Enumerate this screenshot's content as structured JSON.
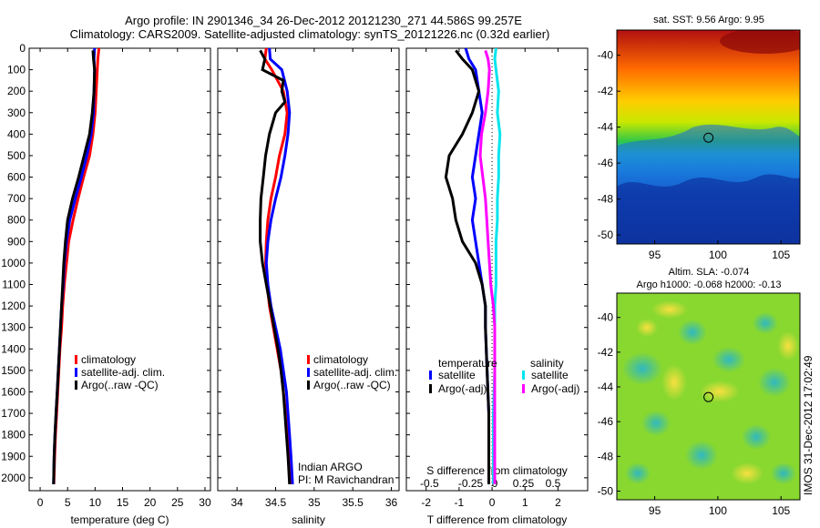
{
  "header": {
    "line1": "Argo profile: IN 2901346_34 26-Dec-2012 20121230_271 44.586S 99.257E",
    "line2": "Climatology: CARS2009. Satellite-adjusted climatology: synTS_20121226.nc (0.32d earlier)"
  },
  "side_text": "IMOS 31-Dec-2012 17:02:49",
  "colors": {
    "red": "#ff0000",
    "blue": "#0000ff",
    "black": "#000000",
    "cyan": "#00e5ee",
    "magenta": "#ff00ff"
  },
  "chart_data": [
    {
      "type": "line",
      "panel": "temperature",
      "xlabel": "temperature (deg C)",
      "ylabel": "",
      "xlim": [
        -2,
        31
      ],
      "ylim": [
        2060,
        0
      ],
      "xticks": [
        0,
        5,
        10,
        15,
        20,
        25,
        30
      ],
      "yticks": [
        0,
        100,
        200,
        300,
        400,
        500,
        600,
        700,
        800,
        900,
        1000,
        1100,
        1200,
        1300,
        1400,
        1500,
        1600,
        1700,
        1800,
        1900,
        2000
      ],
      "legend": {
        "placement": "lower-center",
        "entries": [
          "climatology",
          "satellite-adj. clim.",
          "Argo(..raw -QC)"
        ]
      },
      "series": [
        {
          "name": "climatology",
          "color": "red",
          "depth": [
            0,
            50,
            100,
            200,
            300,
            400,
            500,
            600,
            700,
            800,
            900,
            1000,
            1100,
            1200,
            1300,
            1400,
            1500,
            1600,
            1700,
            1800,
            1900,
            2030
          ],
          "values": [
            10.7,
            10.5,
            10.4,
            10.2,
            10.0,
            9.6,
            9.0,
            7.9,
            6.9,
            6.0,
            5.2,
            4.8,
            4.4,
            4.1,
            3.9,
            3.6,
            3.4,
            3.2,
            3.0,
            2.8,
            2.65,
            2.5
          ]
        },
        {
          "name": "satellite-adj. clim.",
          "color": "blue",
          "depth": [
            0,
            50,
            100,
            200,
            300,
            400,
            500,
            600,
            700,
            800,
            900,
            1000,
            1100,
            1200,
            1300,
            1400,
            1500,
            1600,
            1700,
            1800,
            1900,
            2030
          ],
          "values": [
            9.9,
            9.8,
            9.9,
            9.8,
            9.7,
            9.3,
            8.5,
            7.5,
            6.4,
            5.4,
            4.8,
            4.4,
            4.2,
            3.9,
            3.7,
            3.5,
            3.3,
            3.1,
            2.9,
            2.7,
            2.55,
            2.45
          ]
        },
        {
          "name": "Argo(..raw -QC)",
          "color": "black",
          "depth": [
            10,
            50,
            100,
            200,
            300,
            400,
            500,
            600,
            700,
            800,
            900,
            1000,
            1100,
            1200,
            1300,
            1400,
            1500,
            1600,
            1700,
            1800,
            1900,
            2030
          ],
          "values": [
            9.6,
            9.7,
            9.9,
            9.8,
            9.5,
            9.0,
            8.0,
            7.0,
            5.9,
            5.0,
            4.6,
            4.3,
            4.1,
            3.9,
            3.7,
            3.5,
            3.3,
            3.1,
            2.9,
            2.7,
            2.55,
            2.45
          ]
        }
      ]
    },
    {
      "type": "line",
      "panel": "salinity",
      "xlabel": "salinity",
      "ylabel": "",
      "xlim": [
        33.75,
        36.1
      ],
      "ylim": [
        2060,
        0
      ],
      "xticks": [
        34,
        34.5,
        35,
        35.5,
        36
      ],
      "legend": {
        "placement": "lower-right",
        "entries": [
          "climatology",
          "satellite-adj. clim.",
          "Argo(..raw -QC)"
        ]
      },
      "annotations": [
        "Indian ARGO",
        "PI: M Ravichandran"
      ],
      "series": [
        {
          "name": "climatology",
          "color": "red",
          "depth": [
            0,
            50,
            100,
            200,
            300,
            400,
            500,
            600,
            700,
            800,
            900,
            1000,
            1100,
            1200,
            1300,
            1400,
            1500,
            1600,
            1700,
            1800,
            1900,
            2030
          ],
          "values": [
            34.38,
            34.36,
            34.45,
            34.6,
            34.65,
            34.62,
            34.55,
            34.5,
            34.44,
            34.4,
            34.38,
            34.37,
            34.39,
            34.42,
            34.47,
            34.52,
            34.57,
            34.6,
            34.63,
            34.65,
            34.67,
            34.7
          ]
        },
        {
          "name": "satellite-adj. clim.",
          "color": "blue",
          "depth": [
            0,
            50,
            100,
            200,
            300,
            400,
            500,
            600,
            700,
            800,
            900,
            1000,
            1100,
            1200,
            1300,
            1400,
            1500,
            1600,
            1700,
            1800,
            1900,
            2030
          ],
          "values": [
            34.42,
            34.43,
            34.58,
            34.65,
            34.68,
            34.66,
            34.62,
            34.57,
            34.5,
            34.44,
            34.4,
            34.38,
            34.4,
            34.44,
            34.5,
            34.56,
            34.6,
            34.64,
            34.66,
            34.68,
            34.7,
            34.72
          ]
        },
        {
          "name": "Argo(..raw -QC)",
          "color": "black",
          "depth": [
            10,
            50,
            100,
            150,
            200,
            250,
            300,
            400,
            500,
            600,
            700,
            800,
            900,
            1000,
            1100,
            1200,
            1300,
            1400,
            1500,
            1600,
            1700,
            1800,
            1900,
            2030
          ],
          "values": [
            34.3,
            34.36,
            34.33,
            34.6,
            34.58,
            34.62,
            34.5,
            34.42,
            34.37,
            34.34,
            34.31,
            34.3,
            34.3,
            34.33,
            34.38,
            34.43,
            34.48,
            34.53,
            34.57,
            34.6,
            34.62,
            34.64,
            34.66,
            34.68
          ]
        }
      ]
    },
    {
      "type": "line",
      "panel": "differences",
      "xlabel": "T difference from climatology",
      "x2label": "S difference from climatology",
      "xlim": [
        -2.6,
        2.9
      ],
      "ylim": [
        2060,
        0
      ],
      "xticks": [
        -2,
        -1,
        0,
        1,
        2
      ],
      "x2ticks": [
        "-0.5",
        "-0.25",
        "0",
        "0.25",
        "0.5"
      ],
      "legend": {
        "placement": "lower-center",
        "groups": [
          "temperature",
          "salinity"
        ],
        "entries": [
          "satellite",
          "Argo(-adj)",
          "satellite",
          "Argo(-adj)"
        ]
      },
      "series": [
        {
          "name": "satellite",
          "group": "temperature",
          "color": "blue",
          "depth": [
            0,
            50,
            100,
            200,
            300,
            400,
            500,
            600,
            700,
            800,
            900,
            1000,
            1100,
            1200,
            1300,
            1500,
            1700,
            2030
          ],
          "values": [
            -0.8,
            -0.7,
            -0.5,
            -0.4,
            -0.3,
            -0.4,
            -0.5,
            -0.6,
            -0.5,
            -0.6,
            -0.5,
            -0.4,
            -0.3,
            -0.2,
            -0.2,
            -0.15,
            -0.1,
            -0.1
          ]
        },
        {
          "name": "Argo(-adj)",
          "group": "temperature",
          "color": "black",
          "depth": [
            10,
            50,
            100,
            200,
            300,
            400,
            500,
            600,
            700,
            800,
            900,
            1000,
            1100,
            1200,
            1300,
            1500,
            1700,
            2030
          ],
          "values": [
            -1.1,
            -0.9,
            -0.6,
            -0.4,
            -0.6,
            -0.9,
            -1.3,
            -1.4,
            -1.2,
            -1.1,
            -0.9,
            -0.5,
            -0.3,
            -0.2,
            -0.2,
            -0.15,
            -0.1,
            -0.1
          ]
        },
        {
          "name": "satellite",
          "group": "salinity",
          "color": "cyan",
          "depth": [
            0,
            50,
            100,
            200,
            300,
            400,
            500,
            600,
            700,
            800,
            900,
            1000,
            1100,
            1200,
            1300,
            1500,
            1700,
            2030
          ],
          "values": [
            0.03,
            0.02,
            0.03,
            0.05,
            0.04,
            0.06,
            0.05,
            0.05,
            0.04,
            0.04,
            0.03,
            0.03,
            0.03,
            0.02,
            0.02,
            0.02,
            0.01,
            0.01
          ]
        },
        {
          "name": "Argo(-adj)",
          "group": "salinity",
          "color": "magenta",
          "depth": [
            10,
            50,
            100,
            200,
            300,
            400,
            500,
            600,
            700,
            800,
            900,
            1000,
            1100,
            1200,
            1300,
            1500,
            1700,
            2030
          ],
          "values": [
            -0.05,
            -0.03,
            -0.02,
            -0.03,
            -0.05,
            -0.08,
            -0.09,
            -0.07,
            -0.05,
            -0.04,
            -0.03,
            -0.02,
            -0.01,
            0.01,
            0.02,
            0.02,
            0.02,
            0.02
          ]
        }
      ]
    },
    {
      "type": "heatmap",
      "panel": "sst-map",
      "title": "sat. SST: 9.56 Argo: 9.95",
      "xlim": [
        92,
        106.5
      ],
      "ylim": [
        -50.5,
        -38.6
      ],
      "xticks": [
        95,
        100,
        105
      ],
      "yticks": [
        -40,
        -42,
        -44,
        -46,
        -48,
        -50
      ],
      "marker": {
        "lon": 99.257,
        "lat": -44.586
      }
    },
    {
      "type": "heatmap",
      "panel": "sla-map",
      "title": "Altim. SLA: -0.074",
      "subtitle": "Argo h1000: -0.068 h2000: -0.13",
      "xlim": [
        92,
        106.5
      ],
      "ylim": [
        -50.5,
        -38.6
      ],
      "xticks": [
        95,
        100,
        105
      ],
      "yticks": [
        -40,
        -42,
        -44,
        -46,
        -48,
        -50
      ],
      "marker": {
        "lon": 99.257,
        "lat": -44.586
      }
    }
  ]
}
